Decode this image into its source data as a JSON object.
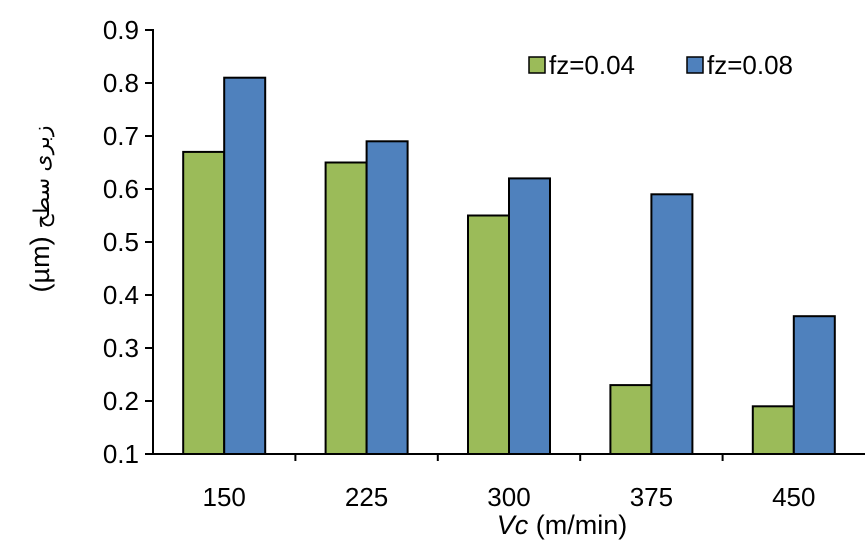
{
  "chart_data": {
    "type": "bar",
    "categories": [
      "150",
      "225",
      "300",
      "375",
      "450"
    ],
    "series": [
      {
        "name": "fz=0.04",
        "values": [
          0.67,
          0.65,
          0.55,
          0.23,
          0.19
        ],
        "color": "#9bbb59"
      },
      {
        "name": "fz=0.08",
        "values": [
          0.81,
          0.69,
          0.62,
          0.59,
          0.36
        ],
        "color": "#4f81bd"
      }
    ],
    "xlabel": {
      "italic": "Vc",
      "rest": " (m/min)"
    },
    "ylabel": {
      "persian": "زبری سطح",
      "unit": "(µm)"
    },
    "ylim": [
      0.1,
      0.9
    ],
    "yticks": [
      0.1,
      0.2,
      0.3,
      0.4,
      0.5,
      0.6,
      0.7,
      0.8,
      0.9
    ],
    "ytick_labels": [
      "0.1",
      "0.2",
      "0.3",
      "0.4",
      "0.5",
      "0.6",
      "0.7",
      "0.8",
      "0.9"
    ],
    "grid": false,
    "legend_position": "top-right"
  }
}
